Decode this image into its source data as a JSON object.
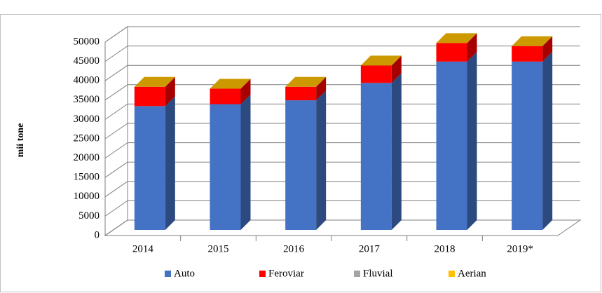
{
  "chart_data": {
    "type": "bar3d_stacked",
    "y_label": "mii tone",
    "categories": [
      "2014",
      "2015",
      "2016",
      "2017",
      "2018",
      "2019*"
    ],
    "series": [
      {
        "name": "Auto",
        "color": "#4472c4",
        "values": [
          32000,
          32500,
          33500,
          38000,
          43500,
          43500
        ]
      },
      {
        "name": "Feroviar",
        "color": "#ff0000",
        "values": [
          5000,
          4000,
          3500,
          4500,
          4800,
          4000
        ]
      },
      {
        "name": "Fluvial",
        "color": "#a5a5a5",
        "values": [
          0,
          0,
          0,
          0,
          0,
          0
        ]
      },
      {
        "name": "Aerian",
        "color": "#ffc000",
        "values": [
          0,
          0,
          0,
          0,
          0,
          0
        ]
      }
    ],
    "ylim": [
      0,
      50000
    ],
    "yticks": [
      0,
      5000,
      10000,
      15000,
      20000,
      25000,
      30000,
      35000,
      40000,
      45000,
      50000
    ],
    "grid": true,
    "legend": "bottom"
  }
}
